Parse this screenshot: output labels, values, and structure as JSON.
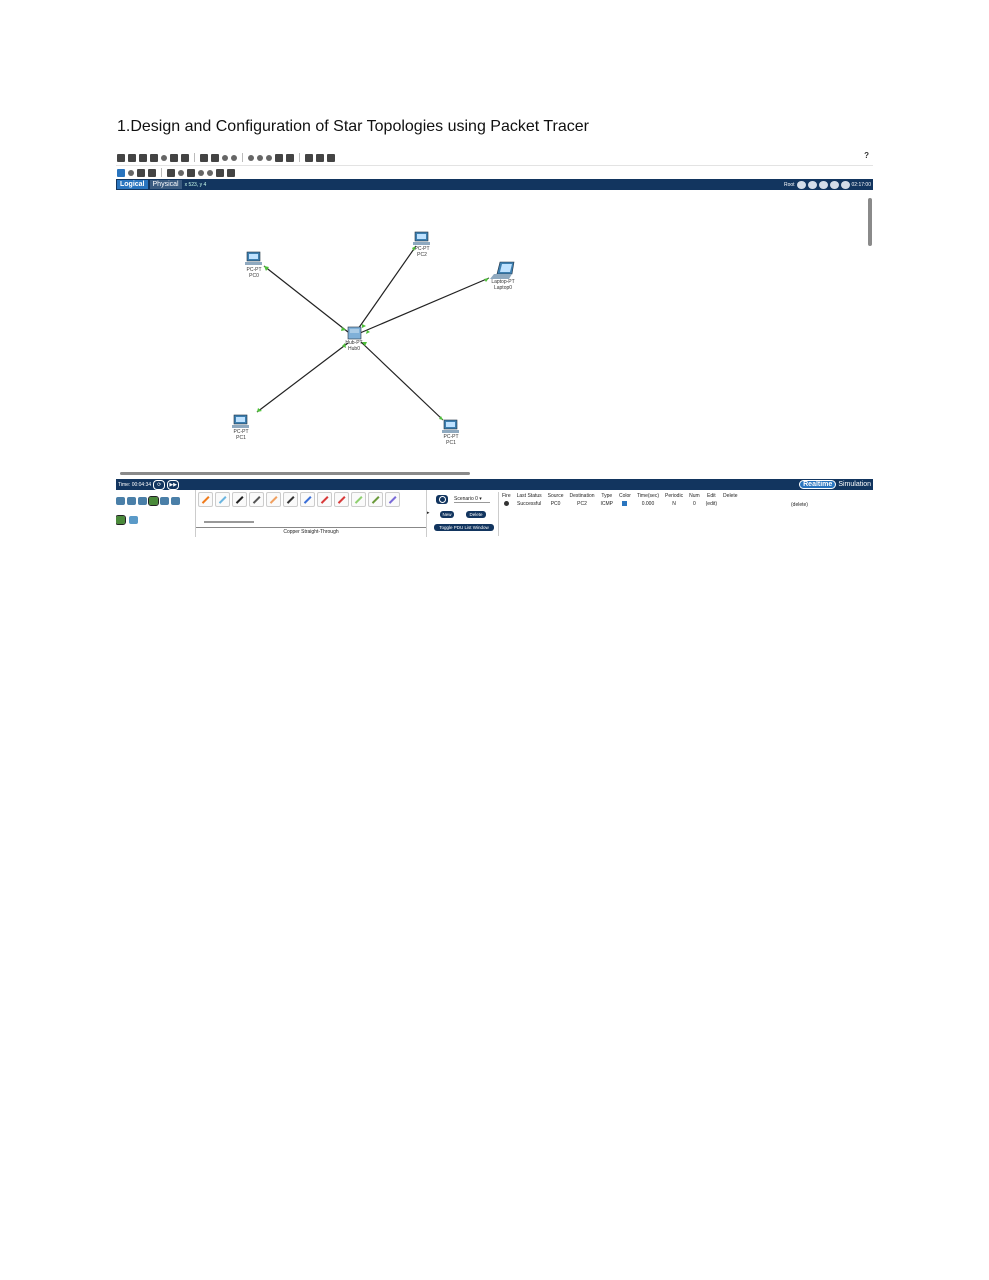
{
  "document": {
    "title": "1.Design and Configuration of Star Topologies using Packet Tracer"
  },
  "app": {
    "help": "?",
    "tabs": {
      "logical": "Logical",
      "physical": "Physical",
      "coords": "x 523, y 4"
    },
    "root_label": "Root",
    "clock": "02:17:00",
    "time_label": "Time: 00:04:34",
    "modes": {
      "realtime": "Realtime",
      "simulation": "Simulation"
    }
  },
  "devices": {
    "pc0": {
      "type": "PC-PT",
      "name": "PC0"
    },
    "pc2": {
      "type": "PC-PT",
      "name": "PC2"
    },
    "laptop": {
      "type": "Laptop-PT",
      "name": "Laptop0"
    },
    "hub": {
      "type": "Hub-PT",
      "name": "Hub0"
    },
    "pc1": {
      "type": "PC-PT",
      "name": "PC1"
    },
    "pc3": {
      "type": "PC-PT",
      "name": "PC1"
    }
  },
  "cable_panel": {
    "selected": "Copper Straight-Through"
  },
  "scenario": {
    "name": "Scenario 0",
    "new": "New",
    "delete": "Delete",
    "toggle": "Toggle PDU List Window"
  },
  "pdu_table": {
    "headers": [
      "Fire",
      "Last Status",
      "Source",
      "Destination",
      "Type",
      "Color",
      "Time(sec)",
      "Periodic",
      "Num",
      "Edit",
      "Delete"
    ],
    "row": {
      "status": "Successful",
      "source": "PC0",
      "destination": "PC2",
      "type": "ICMP",
      "time": "0.000",
      "periodic": "N",
      "num": "0",
      "edit": "(edit)",
      "delete": "(delete)"
    }
  },
  "colors": {
    "navy_bar": "#12355f",
    "accent_blue": "#2a75bf",
    "link_green": "#4fc13a"
  }
}
